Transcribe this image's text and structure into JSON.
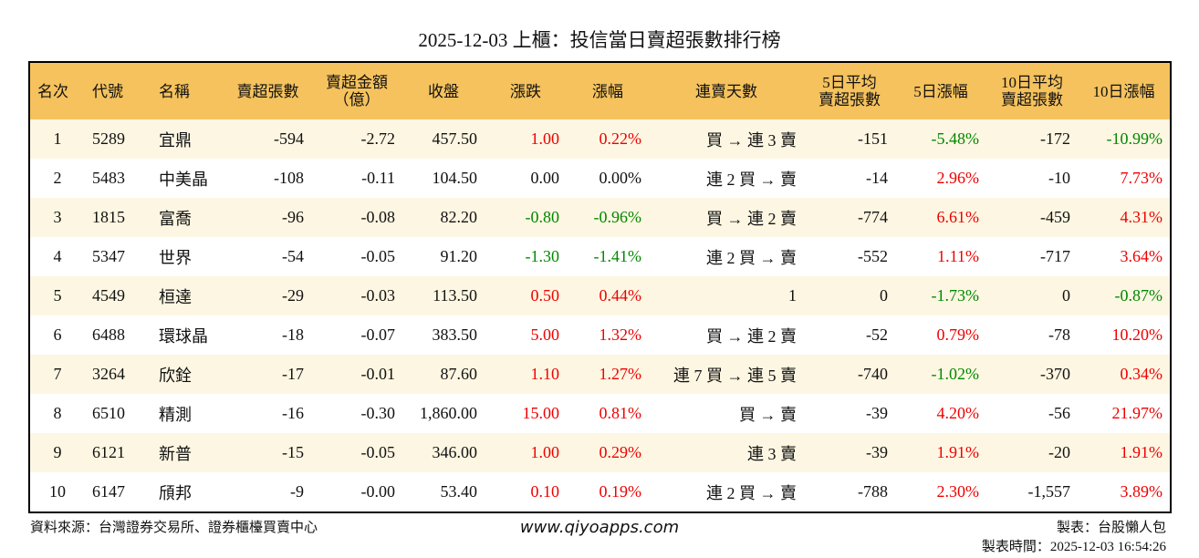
{
  "title": "2025-12-03 上櫃：投信當日賣超張數排行榜",
  "table": {
    "header": [
      [
        "名次"
      ],
      [
        "代號"
      ],
      [
        "名稱"
      ],
      [
        "賣超張數"
      ],
      [
        "賣超金額",
        "（億）"
      ],
      [
        "收盤"
      ],
      [
        "漲跌"
      ],
      [
        "漲幅"
      ],
      [
        "連賣天數"
      ],
      [
        "5日平均",
        "賣超張數"
      ],
      [
        "5日漲幅"
      ],
      [
        "10日平均",
        "賣超張數"
      ],
      [
        "10日漲幅"
      ]
    ],
    "rows": [
      [
        "1",
        "5289",
        "宜鼎",
        "-594",
        "-2.72",
        "457.50",
        "1.00",
        "0.22%",
        "買 → 連 3 賣",
        "-151",
        "-5.48%",
        "-172",
        "-10.99%"
      ],
      [
        "2",
        "5483",
        "中美晶",
        "-108",
        "-0.11",
        "104.50",
        "0.00",
        "0.00%",
        "連 2 買 → 賣",
        "-14",
        "2.96%",
        "-10",
        "7.73%"
      ],
      [
        "3",
        "1815",
        "富喬",
        "-96",
        "-0.08",
        "82.20",
        "-0.80",
        "-0.96%",
        "買 → 連 2 賣",
        "-774",
        "6.61%",
        "-459",
        "4.31%"
      ],
      [
        "4",
        "5347",
        "世界",
        "-54",
        "-0.05",
        "91.20",
        "-1.30",
        "-1.41%",
        "連 2 買 → 賣",
        "-552",
        "1.11%",
        "-717",
        "3.64%"
      ],
      [
        "5",
        "4549",
        "桓達",
        "-29",
        "-0.03",
        "113.50",
        "0.50",
        "0.44%",
        "1",
        "0",
        "-1.73%",
        "0",
        "-0.87%"
      ],
      [
        "6",
        "6488",
        "環球晶",
        "-18",
        "-0.07",
        "383.50",
        "5.00",
        "1.32%",
        "買 → 連 2 賣",
        "-52",
        "0.79%",
        "-78",
        "10.20%"
      ],
      [
        "7",
        "3264",
        "欣銓",
        "-17",
        "-0.01",
        "87.60",
        "1.10",
        "1.27%",
        "連 7 買 → 連 5 賣",
        "-740",
        "-1.02%",
        "-370",
        "0.34%"
      ],
      [
        "8",
        "6510",
        "精測",
        "-16",
        "-0.30",
        "1,860.00",
        "15.00",
        "0.81%",
        "買 → 賣",
        "-39",
        "4.20%",
        "-56",
        "21.97%"
      ],
      [
        "9",
        "6121",
        "新普",
        "-15",
        "-0.05",
        "346.00",
        "1.00",
        "0.29%",
        "連 3 賣",
        "-39",
        "1.91%",
        "-20",
        "1.91%"
      ],
      [
        "10",
        "6147",
        "頎邦",
        "-9",
        "-0.00",
        "53.40",
        "0.10",
        "0.19%",
        "連 2 買 → 賣",
        "-788",
        "2.30%",
        "-1,557",
        "3.89%"
      ]
    ]
  },
  "footer": {
    "source": "資料來源：台灣證券交易所、證券櫃檯買賣中心",
    "website": "www.qiyoapps.com",
    "maker": "製表：台股懶人包",
    "time": "製表時間：2025-12-03 16:54:26"
  }
}
